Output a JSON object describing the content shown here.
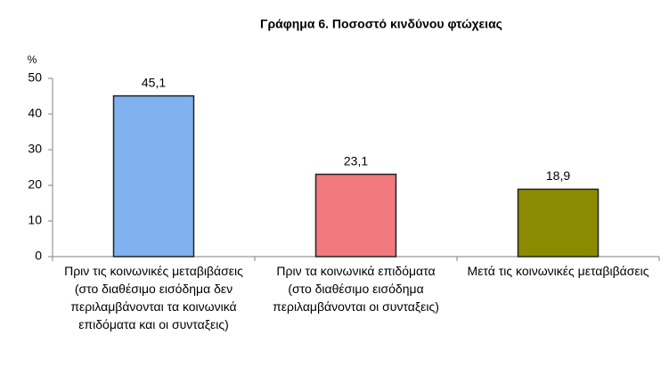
{
  "chart_data": {
    "type": "bar",
    "title": "Γράφημα 6. Ποσοστό κινδύνου φτώχειας",
    "y_label": "%",
    "categories": [
      "Πριν τις κοινωνικές μεταβιβάσεις (στο διαθέσιμο εισόδημα δεν περιλαμβάνονται τα κοινωνικά επιδόματα και οι συνταξεις)",
      "Πριν τα κοινωνικά επιδόματα (στο διαθέσιμο εισόδημα περιλαμβάνονται οι συνταξεις)",
      "Μετά τις κοινωνικές μεταβιβάσεις"
    ],
    "values": [
      45.1,
      23.1,
      18.9
    ],
    "value_labels": [
      "45,1",
      "23,1",
      "18,9"
    ],
    "colors": [
      "#7fb2ee",
      "#f27a7f",
      "#8c8a00"
    ],
    "ylim": [
      0,
      50
    ],
    "yticks": [
      0,
      10,
      20,
      30,
      40,
      50
    ],
    "grid": false
  }
}
